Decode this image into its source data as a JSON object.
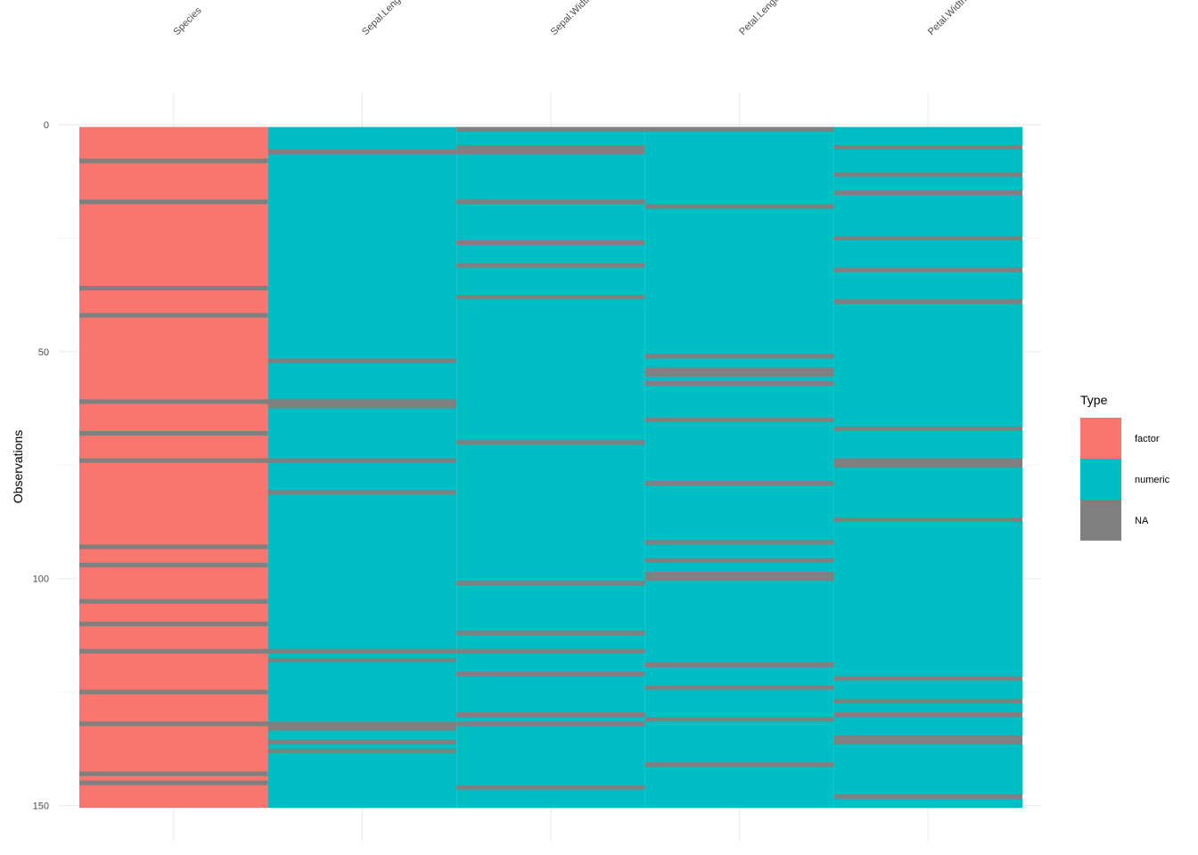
{
  "chart_data": {
    "type": "heatmap",
    "title": "",
    "xlabel": "",
    "ylabel": "Observations",
    "columns": [
      "Species",
      "Sepal.Length",
      "Sepal.Width",
      "Petal.Length",
      "Petal.Width"
    ],
    "column_types": [
      "factor",
      "numeric",
      "numeric",
      "numeric",
      "numeric"
    ],
    "n_rows": 150,
    "ylim": [
      0,
      150
    ],
    "y_ticks": [
      0,
      50,
      100,
      150
    ],
    "y_reversed": true,
    "grid": true,
    "legend": {
      "title": "Type",
      "position": "right",
      "entries": [
        {
          "label": "factor",
          "color": "#F8766D"
        },
        {
          "label": "numeric",
          "color": "#00BFC4"
        },
        {
          "label": "NA",
          "color": "#808080"
        }
      ]
    },
    "missing_rows": {
      "Species": [
        8,
        17,
        36,
        42,
        61,
        68,
        74,
        93,
        97,
        105,
        110,
        116,
        125,
        132,
        143,
        145
      ],
      "Sepal.Length": [
        6,
        52,
        61,
        62,
        74,
        81,
        116,
        118,
        132,
        133,
        136,
        138
      ],
      "Sepal.Width": [
        1,
        5,
        6,
        17,
        26,
        31,
        38,
        70,
        101,
        112,
        116,
        121,
        130,
        132,
        146
      ],
      "Petal.Length": [
        1,
        18,
        51,
        54,
        55,
        57,
        65,
        79,
        92,
        96,
        99,
        100,
        119,
        124,
        131,
        141
      ],
      "Petal.Width": [
        5,
        11,
        15,
        25,
        32,
        39,
        67,
        74,
        75,
        87,
        122,
        127,
        130,
        135,
        136,
        148
      ]
    }
  }
}
